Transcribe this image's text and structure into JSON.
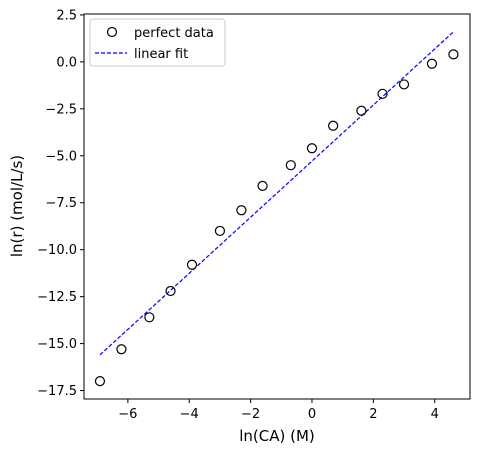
{
  "chart_data": {
    "type": "scatter",
    "xlabel": "ln(CA) (M)",
    "ylabel": "ln(r) (mol/L/s)",
    "xlim": [
      -7.43,
      5.15
    ],
    "ylim": [
      -17.95,
      2.55
    ],
    "xticks": [
      -6,
      -4,
      -2,
      0,
      2,
      4
    ],
    "xtick_labels": [
      "−6",
      "−4",
      "−2",
      "0",
      "2",
      "4"
    ],
    "yticks": [
      2.5,
      0.0,
      -2.5,
      -5.0,
      -7.5,
      -10.0,
      -12.5,
      -15.0,
      -17.5
    ],
    "ytick_labels": [
      "2.5",
      "0.0",
      "−2.5",
      "−5.0",
      "−7.5",
      "−10.0",
      "−12.5",
      "−15.0",
      "−17.5"
    ],
    "grid": false,
    "legend_position": "top-left",
    "series": [
      {
        "name": "perfect data",
        "kind": "scatter",
        "marker": "hollow-circle",
        "color": "#000000",
        "x": [
          -6.91,
          -6.21,
          -5.3,
          -4.61,
          -3.91,
          -3.0,
          -2.3,
          -1.61,
          -0.69,
          0.0,
          0.69,
          1.61,
          2.3,
          3.0,
          3.91,
          4.61
        ],
        "y": [
          -17.0,
          -15.3,
          -13.6,
          -12.2,
          -10.8,
          -9.0,
          -7.9,
          -6.6,
          -5.5,
          -4.6,
          -3.4,
          -2.6,
          -1.7,
          -1.2,
          -0.1,
          0.4
        ]
      },
      {
        "name": "linear fit",
        "kind": "line",
        "style": "dashed",
        "color": "#0000ff",
        "x": [
          -6.91,
          4.61
        ],
        "y": [
          -15.6,
          1.6
        ]
      }
    ]
  }
}
